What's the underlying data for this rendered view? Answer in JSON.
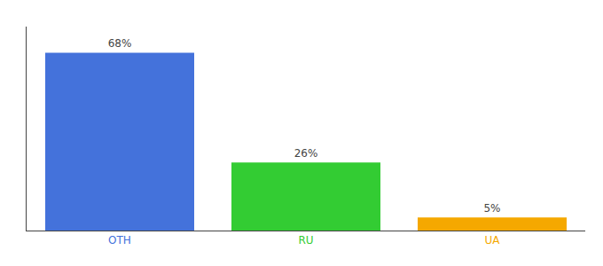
{
  "chart_data": {
    "type": "bar",
    "categories": [
      "OTH",
      "RU",
      "UA"
    ],
    "values": [
      68,
      26,
      5
    ],
    "value_labels": [
      "68%",
      "26%",
      "5%"
    ],
    "colors": [
      "#4472db",
      "#33cc33",
      "#f5a800"
    ],
    "ylim": [
      0,
      78
    ],
    "data_labels": true,
    "tick_labels": "x",
    "grid": false
  }
}
